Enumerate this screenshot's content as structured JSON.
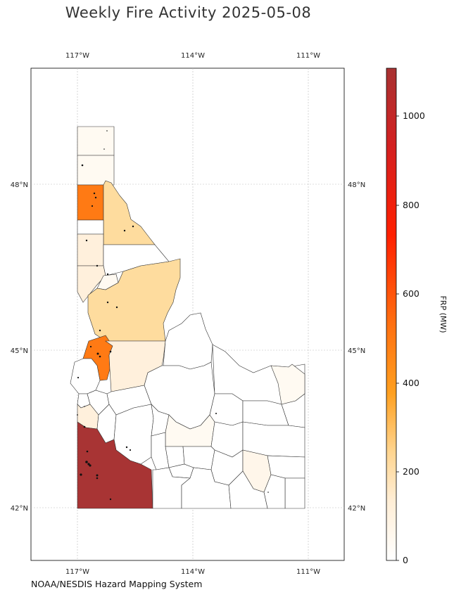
{
  "title": "Weekly Fire Activity 2025-05-08",
  "credit": "NOAA/NESDIS Hazard Mapping System",
  "colorbar": {
    "label": "FRP (MW)",
    "ticks": [
      "0",
      "200",
      "400",
      "600",
      "800",
      "1000"
    ],
    "colors": [
      "#ffffff",
      "#ffeed6",
      "#ffd590",
      "#ffa020",
      "#ff7010",
      "#ff2000",
      "#d42020",
      "#a83232"
    ]
  },
  "axes": {
    "lon_labels": [
      "117°W",
      "114°W",
      "111°W"
    ],
    "lat_labels": [
      "48°N",
      "45°N",
      "42°N"
    ]
  },
  "colors": {
    "frp_1100": "#a83434",
    "frp_430": "#ff7a14",
    "frp_160": "#fedc9e",
    "frp_60": "#fff0dc",
    "frp_20": "#fffaf2",
    "frp_0": "#ffffff"
  }
}
